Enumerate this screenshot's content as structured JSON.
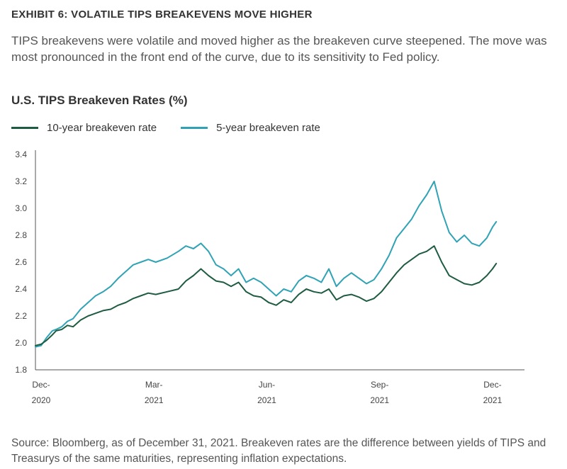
{
  "exhibit_title": "EXHIBIT 6: VOLATILE TIPS BREAKEVENS MOVE HIGHER",
  "description": "TIPS breakevens were volatile and moved higher as the breakeven curve steepened. The move was most pronounced in the front end of the curve, due to its sensitivity to Fed policy.",
  "source_note": "Source: Bloomberg, as of December 31, 2021. Breakeven rates are the difference between yields of TIPS and Treasurys of the same maturities, representing inflation expectations.",
  "chart_data": {
    "type": "line",
    "title": "U.S. TIPS Breakeven Rates (%)",
    "xlabel": "",
    "ylabel": "",
    "ylim": [
      1.8,
      3.4
    ],
    "y_ticks": [
      "3.4",
      "3.2",
      "3.0",
      "2.8",
      "2.6",
      "2.4",
      "2.2",
      "2.0",
      "1.8"
    ],
    "x_ticks": [
      {
        "line1": "Dec-",
        "line2": "2020",
        "month_index": 0
      },
      {
        "line1": "Mar-",
        "line2": "2021",
        "month_index": 3
      },
      {
        "line1": "Jun-",
        "line2": "2021",
        "month_index": 6
      },
      {
        "line1": "Sep-",
        "line2": "2021",
        "month_index": 9
      },
      {
        "line1": "Dec-",
        "line2": "2021",
        "month_index": 12
      }
    ],
    "x_max_month_index": 13.0,
    "x_end_month_index": 12.25,
    "series": [
      {
        "name": "10-year breakeven rate",
        "color": "#1e5c42",
        "x": [
          0.0,
          0.15,
          0.3,
          0.45,
          0.55,
          0.7,
          0.85,
          1.0,
          1.2,
          1.4,
          1.6,
          1.8,
          2.0,
          2.2,
          2.4,
          2.6,
          2.8,
          3.0,
          3.2,
          3.5,
          3.8,
          4.0,
          4.2,
          4.4,
          4.6,
          4.8,
          5.0,
          5.2,
          5.4,
          5.6,
          5.8,
          6.0,
          6.2,
          6.4,
          6.6,
          6.8,
          7.0,
          7.2,
          7.4,
          7.6,
          7.8,
          8.0,
          8.2,
          8.4,
          8.6,
          8.8,
          9.0,
          9.2,
          9.4,
          9.6,
          9.8,
          10.0,
          10.2,
          10.4,
          10.6,
          10.8,
          11.0,
          11.2,
          11.4,
          11.6,
          11.8,
          12.0,
          12.15,
          12.25
        ],
        "values": [
          1.98,
          1.99,
          2.02,
          2.06,
          2.09,
          2.1,
          2.13,
          2.12,
          2.17,
          2.2,
          2.22,
          2.24,
          2.25,
          2.28,
          2.3,
          2.33,
          2.35,
          2.37,
          2.36,
          2.38,
          2.4,
          2.46,
          2.5,
          2.55,
          2.5,
          2.46,
          2.45,
          2.42,
          2.45,
          2.38,
          2.35,
          2.34,
          2.3,
          2.28,
          2.32,
          2.3,
          2.36,
          2.4,
          2.38,
          2.37,
          2.4,
          2.32,
          2.35,
          2.36,
          2.34,
          2.31,
          2.33,
          2.38,
          2.45,
          2.52,
          2.58,
          2.62,
          2.66,
          2.68,
          2.72,
          2.6,
          2.5,
          2.47,
          2.44,
          2.43,
          2.45,
          2.5,
          2.55,
          2.59
        ]
      },
      {
        "name": "5-year breakeven rate",
        "color": "#2fa3b5",
        "x": [
          0.0,
          0.15,
          0.3,
          0.45,
          0.55,
          0.7,
          0.85,
          1.0,
          1.2,
          1.4,
          1.6,
          1.8,
          2.0,
          2.2,
          2.4,
          2.6,
          2.8,
          3.0,
          3.2,
          3.5,
          3.8,
          4.0,
          4.2,
          4.4,
          4.6,
          4.8,
          5.0,
          5.2,
          5.4,
          5.6,
          5.8,
          6.0,
          6.2,
          6.4,
          6.6,
          6.8,
          7.0,
          7.2,
          7.4,
          7.6,
          7.8,
          8.0,
          8.2,
          8.4,
          8.6,
          8.8,
          9.0,
          9.2,
          9.4,
          9.6,
          9.8,
          10.0,
          10.2,
          10.4,
          10.6,
          10.8,
          11.0,
          11.2,
          11.4,
          11.6,
          11.8,
          12.0,
          12.15,
          12.25
        ],
        "values": [
          1.97,
          1.98,
          2.04,
          2.09,
          2.1,
          2.12,
          2.16,
          2.18,
          2.25,
          2.3,
          2.35,
          2.38,
          2.42,
          2.48,
          2.53,
          2.58,
          2.6,
          2.62,
          2.6,
          2.63,
          2.68,
          2.72,
          2.7,
          2.74,
          2.68,
          2.58,
          2.55,
          2.5,
          2.55,
          2.45,
          2.48,
          2.45,
          2.4,
          2.35,
          2.4,
          2.38,
          2.46,
          2.5,
          2.48,
          2.45,
          2.55,
          2.42,
          2.48,
          2.52,
          2.48,
          2.44,
          2.47,
          2.55,
          2.65,
          2.78,
          2.85,
          2.92,
          3.02,
          3.1,
          3.2,
          2.98,
          2.82,
          2.75,
          2.8,
          2.74,
          2.72,
          2.78,
          2.86,
          2.9
        ]
      }
    ]
  }
}
